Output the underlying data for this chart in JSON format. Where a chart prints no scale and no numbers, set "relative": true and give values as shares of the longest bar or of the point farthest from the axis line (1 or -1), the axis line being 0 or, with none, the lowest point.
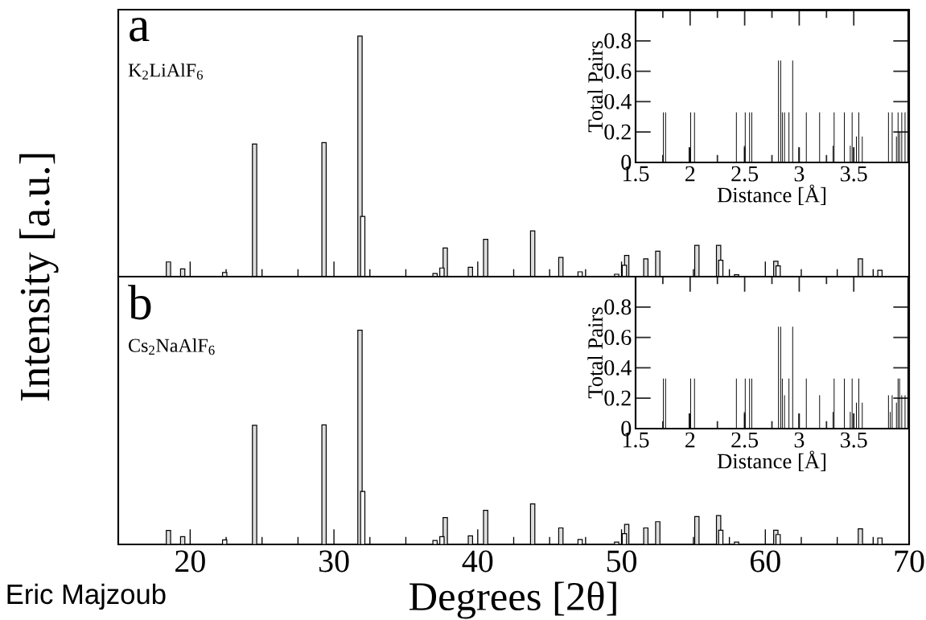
{
  "chart_data": [
    {
      "type": "bar",
      "relative": true,
      "ylabel": "Intensity [a.u.]",
      "xlim": [
        15,
        70
      ],
      "xticks": [
        20,
        30,
        40,
        50,
        60,
        70
      ],
      "tick_labels": false,
      "annotations": [
        "a",
        "K$_{2}$LiAlF$_{6}$"
      ],
      "series": [
        {
          "color": "#dddddd",
          "x": [
            18.49,
            19.48,
            24.48,
            29.31,
            31.81,
            37.74,
            39.49,
            40.55,
            43.82,
            45.78,
            50.36,
            51.69,
            52.52,
            55.24,
            56.75,
            60.73,
            66.61
          ],
          "values": [
            0.061,
            0.032,
            0.551,
            0.557,
            1.0,
            0.119,
            0.039,
            0.155,
            0.19,
            0.08,
            0.088,
            0.074,
            0.106,
            0.13,
            0.13,
            0.064,
            0.074
          ]
        },
        {
          "color": "#f7f7f7",
          "x": [
            22.4,
            32.0,
            37.03,
            37.51,
            47.12,
            49.66,
            50.2,
            56.9,
            58.0,
            60.89,
            67.97
          ],
          "values": [
            0.017,
            0.25,
            0.013,
            0.036,
            0.02,
            0.01,
            0.047,
            0.068,
            0.008,
            0.045,
            0.026
          ]
        }
      ]
    },
    {
      "type": "bar",
      "xlabel": "Distance [Å]",
      "ylabel": "Total Pairs",
      "xlim": [
        1.5,
        4.0
      ],
      "xticks": [
        1.5,
        2,
        2.5,
        3,
        3.5
      ],
      "ylim": [
        0,
        1.0
      ],
      "yticks": [
        0,
        0.2,
        0.4,
        0.6,
        0.8
      ],
      "series": [
        {
          "color": "#000000",
          "x": [
            1.755,
            1.775,
            1.99,
            2.005,
            2.04,
            2.424,
            2.497,
            2.505,
            2.545,
            2.565,
            2.81,
            2.83,
            2.845,
            2.865,
            2.906,
            2.94,
            2.996,
            3.065,
            3.187,
            3.31,
            3.32,
            3.414,
            3.468,
            3.485,
            3.5,
            3.524,
            3.546,
            3.578,
            3.818,
            3.852,
            3.891,
            3.906,
            3.92,
            3.94,
            3.97
          ],
          "values": [
            0.33,
            0.33,
            0.1,
            0.33,
            0.33,
            0.33,
            0.11,
            0.33,
            0.33,
            0.33,
            0.67,
            0.67,
            0.33,
            0.33,
            0.33,
            0.67,
            0.1,
            0.33,
            0.33,
            0.11,
            0.33,
            0.33,
            0.11,
            0.33,
            0.1,
            0.17,
            0.33,
            0.17,
            0.33,
            0.33,
            0.17,
            0.33,
            0.2,
            0.33,
            0.33
          ]
        }
      ]
    },
    {
      "type": "bar",
      "relative": true,
      "xlabel": "Degrees [2θ]",
      "xlim": [
        15,
        70
      ],
      "xticks": [
        20,
        30,
        40,
        50,
        60,
        70
      ],
      "tick_labels": "x",
      "annotations": [
        "b",
        "Cs$_{2}$NaAlF$_{6}$",
        "Eric Majzoub"
      ],
      "series": [
        {
          "color": "#dddddd",
          "x": [
            18.49,
            19.48,
            24.48,
            29.31,
            31.81,
            37.74,
            39.49,
            40.55,
            43.82,
            45.78,
            50.36,
            51.69,
            52.52,
            55.24,
            56.75,
            60.73,
            66.61
          ],
          "values": [
            0.065,
            0.036,
            0.556,
            0.558,
            1.0,
            0.125,
            0.04,
            0.159,
            0.189,
            0.077,
            0.093,
            0.077,
            0.106,
            0.13,
            0.135,
            0.066,
            0.073
          ]
        },
        {
          "color": "#f7f7f7",
          "x": [
            22.4,
            32.0,
            37.03,
            37.51,
            47.12,
            49.66,
            50.2,
            56.9,
            58.0,
            60.89,
            67.97
          ],
          "values": [
            0.021,
            0.247,
            0.018,
            0.036,
            0.023,
            0.011,
            0.05,
            0.066,
            0.011,
            0.046,
            0.03
          ]
        }
      ]
    },
    {
      "type": "bar",
      "xlabel": "Distance [Å]",
      "ylabel": "Total Pairs",
      "xlim": [
        1.5,
        4.0
      ],
      "xticks": [
        1.5,
        2,
        2.5,
        3,
        3.5
      ],
      "ylim": [
        0,
        1.0
      ],
      "yticks": [
        0,
        0.2,
        0.4,
        0.6,
        0.8
      ],
      "series": [
        {
          "color": "#000000",
          "x": [
            1.755,
            1.775,
            1.99,
            2.005,
            2.04,
            2.424,
            2.497,
            2.505,
            2.545,
            2.565,
            2.81,
            2.83,
            2.845,
            2.865,
            2.906,
            2.94,
            2.996,
            3.065,
            3.187,
            3.31,
            3.32,
            3.414,
            3.468,
            3.485,
            3.5,
            3.524,
            3.546,
            3.578,
            3.818,
            3.835,
            3.852,
            3.891,
            3.906,
            3.92,
            3.94,
            3.97
          ],
          "values": [
            0.33,
            0.33,
            0.1,
            0.33,
            0.33,
            0.33,
            0.11,
            0.33,
            0.33,
            0.33,
            0.67,
            0.67,
            0.33,
            0.22,
            0.33,
            0.67,
            0.1,
            0.33,
            0.22,
            0.11,
            0.33,
            0.33,
            0.11,
            0.33,
            0.1,
            0.17,
            0.33,
            0.17,
            0.22,
            0.11,
            0.22,
            0.17,
            0.33,
            0.33,
            0.22,
            0.22
          ]
        }
      ]
    }
  ]
}
